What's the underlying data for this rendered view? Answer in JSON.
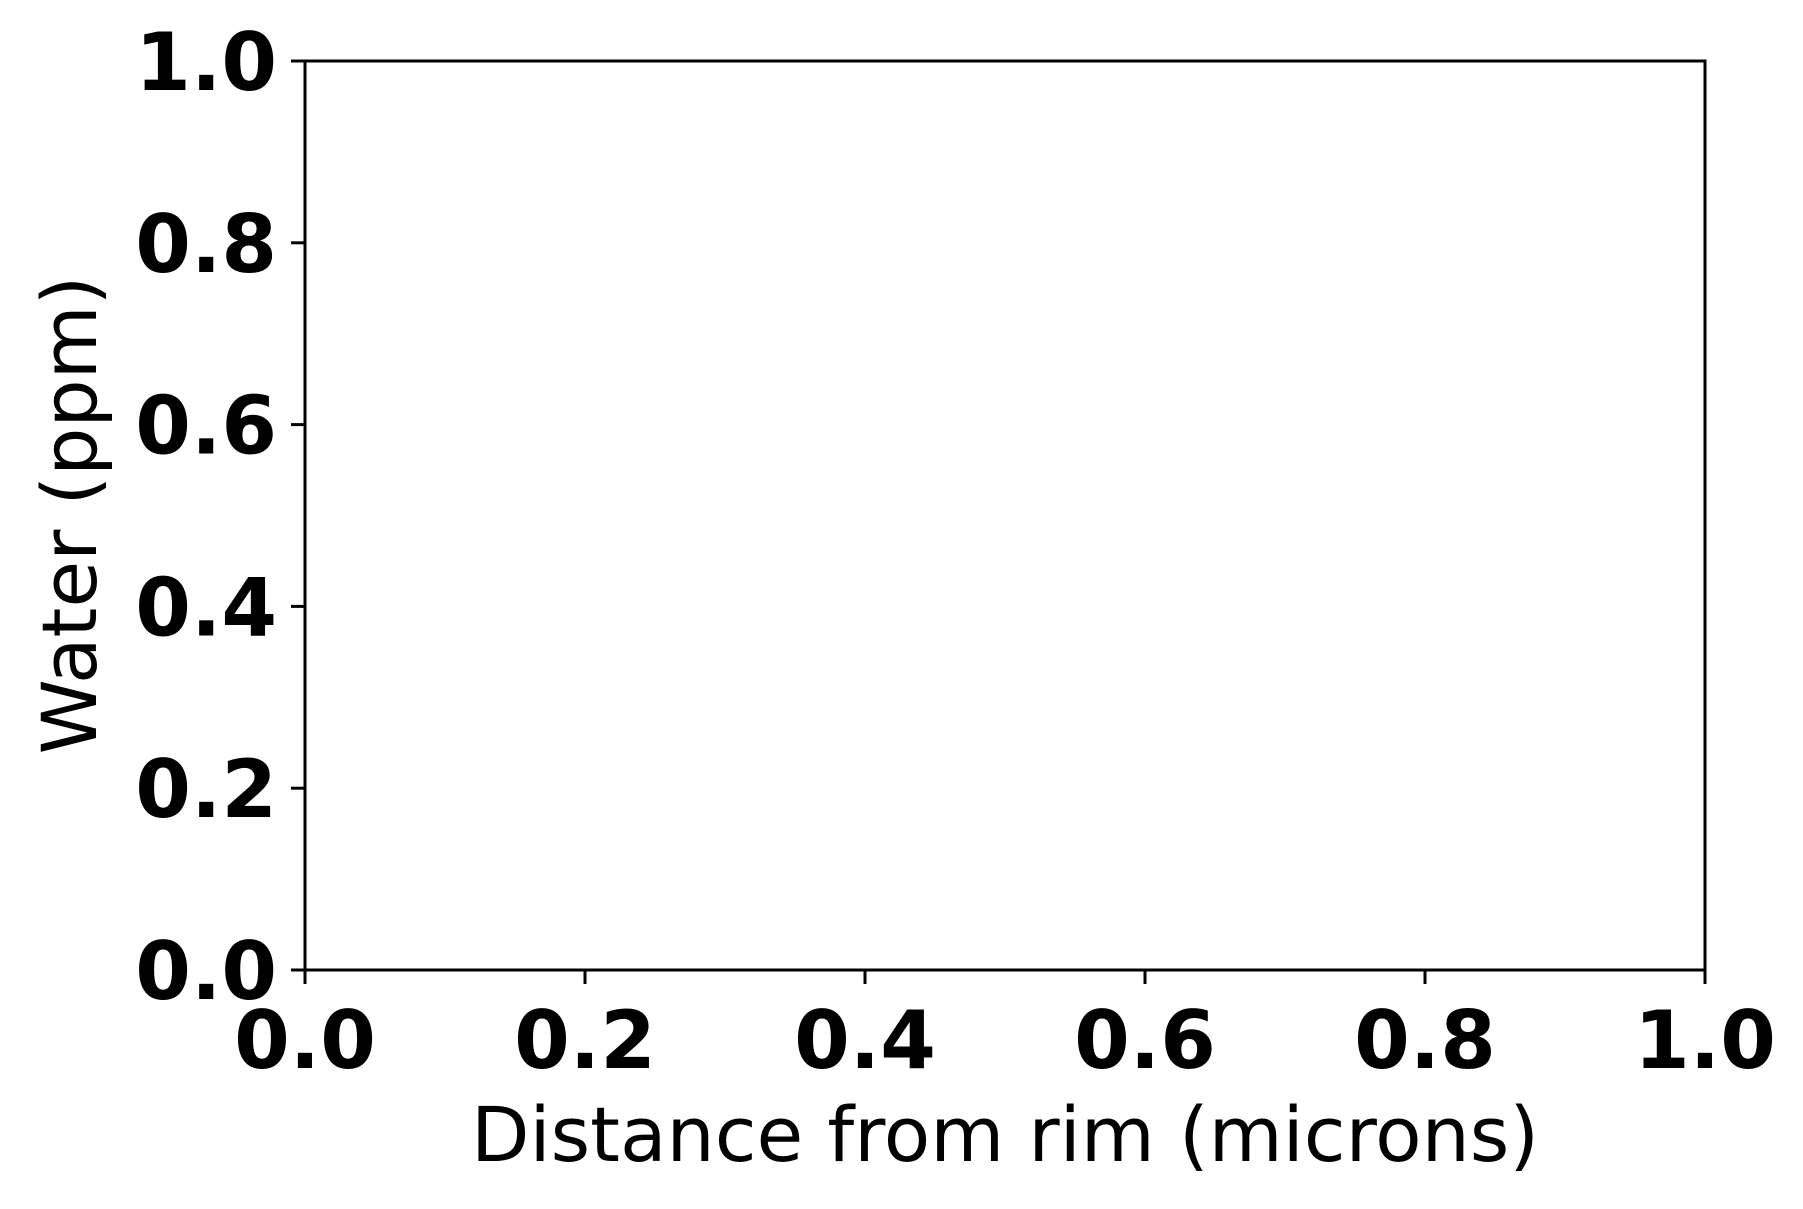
{
  "chart_data": {
    "type": "line",
    "title": "",
    "xlabel": "Distance from rim (microns)",
    "ylabel": "Water (ppm)",
    "xlim": [
      0.0,
      1.0
    ],
    "ylim": [
      0.0,
      1.0
    ],
    "xticks": [
      0.0,
      0.2,
      0.4,
      0.6,
      0.8,
      1.0
    ],
    "yticks": [
      0.0,
      0.2,
      0.4,
      0.6,
      0.8,
      1.0
    ],
    "xtick_labels": [
      "0.0",
      "0.2",
      "0.4",
      "0.6",
      "0.8",
      "1.0"
    ],
    "ytick_labels": [
      "0.0",
      "0.2",
      "0.4",
      "0.6",
      "0.8",
      "1.0"
    ],
    "series": [],
    "grid": false,
    "legend": "none"
  }
}
